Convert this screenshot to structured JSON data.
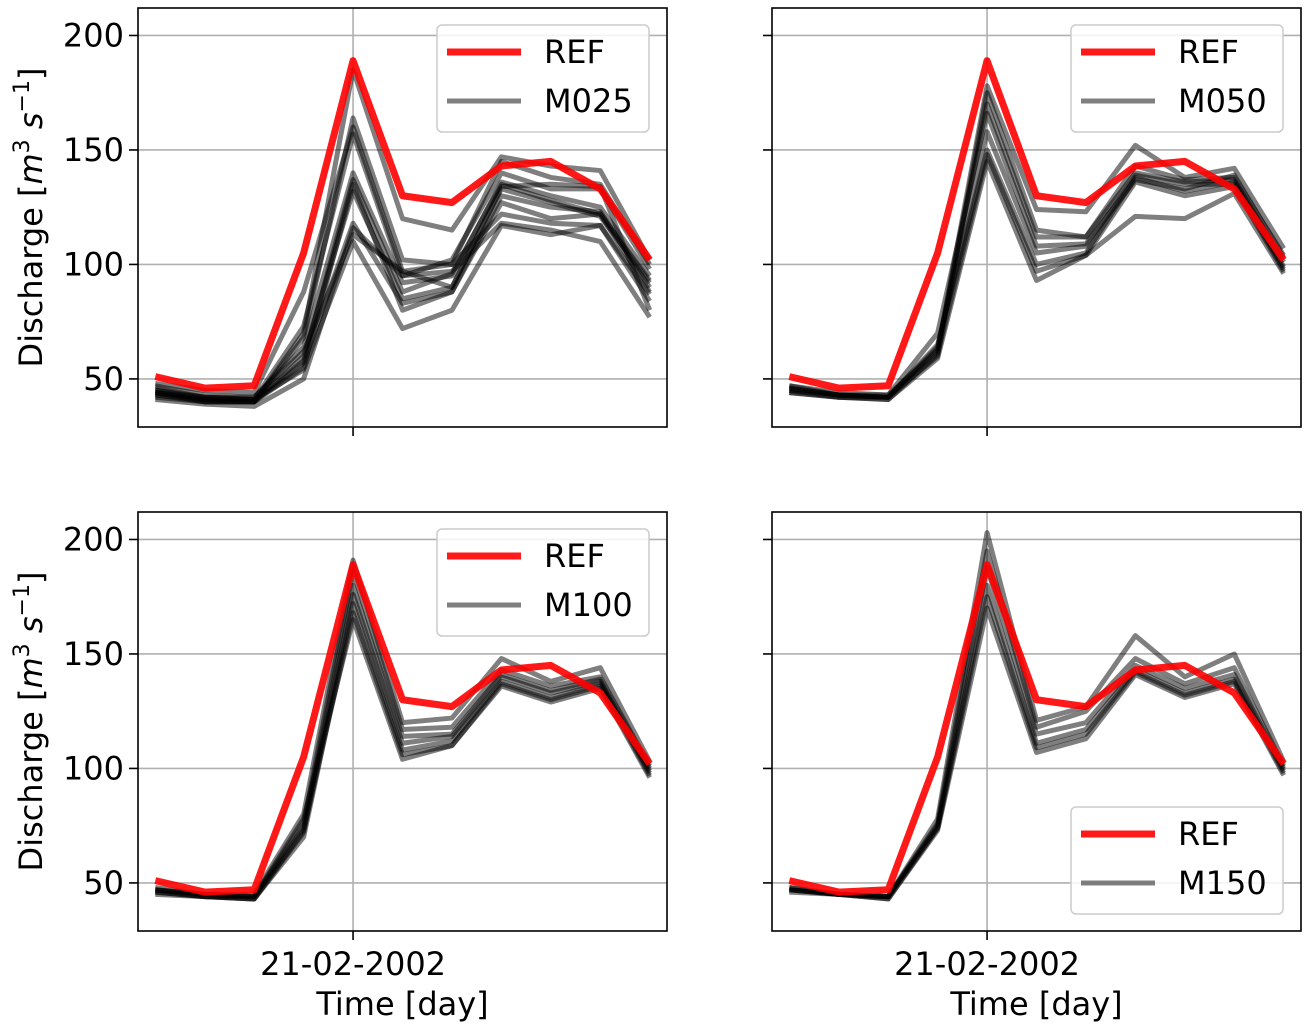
{
  "chart_data": {
    "type": "line",
    "ylim": [
      29,
      212
    ],
    "yticks": [
      50,
      100,
      150,
      200
    ],
    "x_tick_label": "21-02-2002",
    "xlabel": "Time [day]",
    "ylabel_text": "Discharge [",
    "ylabel_math": "m",
    "ylabel_sup1": "3",
    "ylabel_s": " s",
    "ylabel_sup2": "−1",
    "ylabel_close": "]",
    "grid": true,
    "colors": {
      "ref": "#ff0000",
      "member": "#000000",
      "grid": "#b0b0b0"
    },
    "x": [
      -4,
      -3,
      -2,
      -1,
      0,
      1,
      2,
      3,
      4,
      5,
      6
    ],
    "panels": [
      {
        "legend": {
          "position": "top-right",
          "ref_label": "REF",
          "member_label": "M025"
        },
        "ref": [
          51,
          46,
          47,
          105,
          189,
          130,
          127,
          143,
          145,
          133,
          102
        ],
        "members": [
          [
            43,
            40,
            40,
            70,
            185,
            120,
            115,
            147,
            143,
            141,
            102
          ],
          [
            44,
            41,
            40,
            68,
            164,
            102,
            100,
            145,
            138,
            135,
            100
          ],
          [
            45,
            41,
            41,
            73,
            157,
            95,
            102,
            140,
            133,
            133,
            98
          ],
          [
            46,
            42,
            42,
            64,
            140,
            92,
            95,
            136,
            130,
            125,
            95
          ],
          [
            44,
            42,
            41,
            58,
            137,
            88,
            96,
            135,
            128,
            122,
            93
          ],
          [
            43,
            41,
            40,
            60,
            132,
            85,
            90,
            133,
            127,
            121,
            92
          ],
          [
            42,
            40,
            40,
            55,
            135,
            80,
            88,
            130,
            125,
            123,
            90
          ],
          [
            44,
            40,
            40,
            57,
            118,
            83,
            88,
            127,
            120,
            122,
            88
          ],
          [
            47,
            43,
            42,
            62,
            113,
            97,
            100,
            122,
            118,
            117,
            87
          ],
          [
            45,
            42,
            41,
            54,
            110,
            72,
            80,
            117,
            113,
            117,
            84
          ],
          [
            41,
            39,
            38,
            50,
            116,
            95,
            97,
            118,
            115,
            110,
            77
          ],
          [
            48,
            45,
            44,
            88,
            160,
            97,
            90,
            134,
            135,
            134,
            80
          ]
        ]
      },
      {
        "legend": {
          "position": "top-right",
          "ref_label": "REF",
          "member_label": "M050"
        },
        "ref": [
          51,
          46,
          47,
          105,
          189,
          130,
          127,
          143,
          145,
          133,
          102
        ],
        "members": [
          [
            47,
            43,
            43,
            62,
            178,
            124,
            123,
            152,
            138,
            142,
            107
          ],
          [
            46,
            43,
            42,
            60,
            175,
            115,
            112,
            143,
            137,
            138,
            104
          ],
          [
            45,
            43,
            42,
            63,
            170,
            112,
            112,
            140,
            136,
            137,
            101
          ],
          [
            44,
            42,
            42,
            64,
            158,
            105,
            108,
            139,
            135,
            135,
            98
          ],
          [
            46,
            43,
            42,
            65,
            150,
            100,
            105,
            138,
            132,
            136,
            99
          ],
          [
            45,
            42,
            41,
            61,
            148,
            97,
            104,
            136,
            130,
            134,
            97
          ],
          [
            44,
            42,
            41,
            59,
            145,
            93,
            104,
            121,
            120,
            131,
            96
          ],
          [
            47,
            44,
            43,
            70,
            166,
            108,
            109,
            137,
            133,
            139,
            103
          ]
        ]
      },
      {
        "legend": {
          "position": "top-right",
          "ref_label": "REF",
          "member_label": "M100"
        },
        "ref": [
          51,
          46,
          47,
          105,
          189,
          130,
          127,
          143,
          145,
          133,
          102
        ],
        "members": [
          [
            48,
            45,
            45,
            80,
            191,
            120,
            122,
            148,
            138,
            144,
            103
          ],
          [
            47,
            45,
            44,
            76,
            186,
            117,
            118,
            143,
            136,
            140,
            101
          ],
          [
            47,
            44,
            44,
            74,
            180,
            114,
            115,
            141,
            134,
            139,
            100
          ],
          [
            46,
            44,
            43,
            72,
            176,
            111,
            114,
            140,
            133,
            138,
            99
          ],
          [
            46,
            44,
            43,
            70,
            172,
            108,
            112,
            138,
            131,
            137,
            98
          ],
          [
            45,
            44,
            43,
            73,
            168,
            106,
            110,
            137,
            130,
            136,
            97
          ],
          [
            47,
            45,
            44,
            78,
            165,
            104,
            110,
            136,
            129,
            135,
            96
          ]
        ]
      },
      {
        "legend": {
          "position": "lower-right",
          "ref_label": "REF",
          "member_label": "M150"
        },
        "ref": [
          51,
          46,
          47,
          105,
          189,
          130,
          127,
          143,
          145,
          133,
          102
        ],
        "members": [
          [
            48,
            45,
            44,
            78,
            203,
            121,
            127,
            158,
            140,
            150,
            103
          ],
          [
            48,
            45,
            44,
            76,
            195,
            118,
            125,
            148,
            137,
            144,
            101
          ],
          [
            47,
            45,
            44,
            75,
            188,
            115,
            120,
            145,
            135,
            141,
            100
          ],
          [
            47,
            45,
            44,
            74,
            180,
            111,
            117,
            143,
            133,
            139,
            99
          ],
          [
            47,
            45,
            43,
            74,
            175,
            109,
            115,
            142,
            132,
            138,
            98
          ],
          [
            46,
            45,
            43,
            73,
            170,
            107,
            113,
            141,
            131,
            137,
            97
          ]
        ]
      }
    ]
  }
}
